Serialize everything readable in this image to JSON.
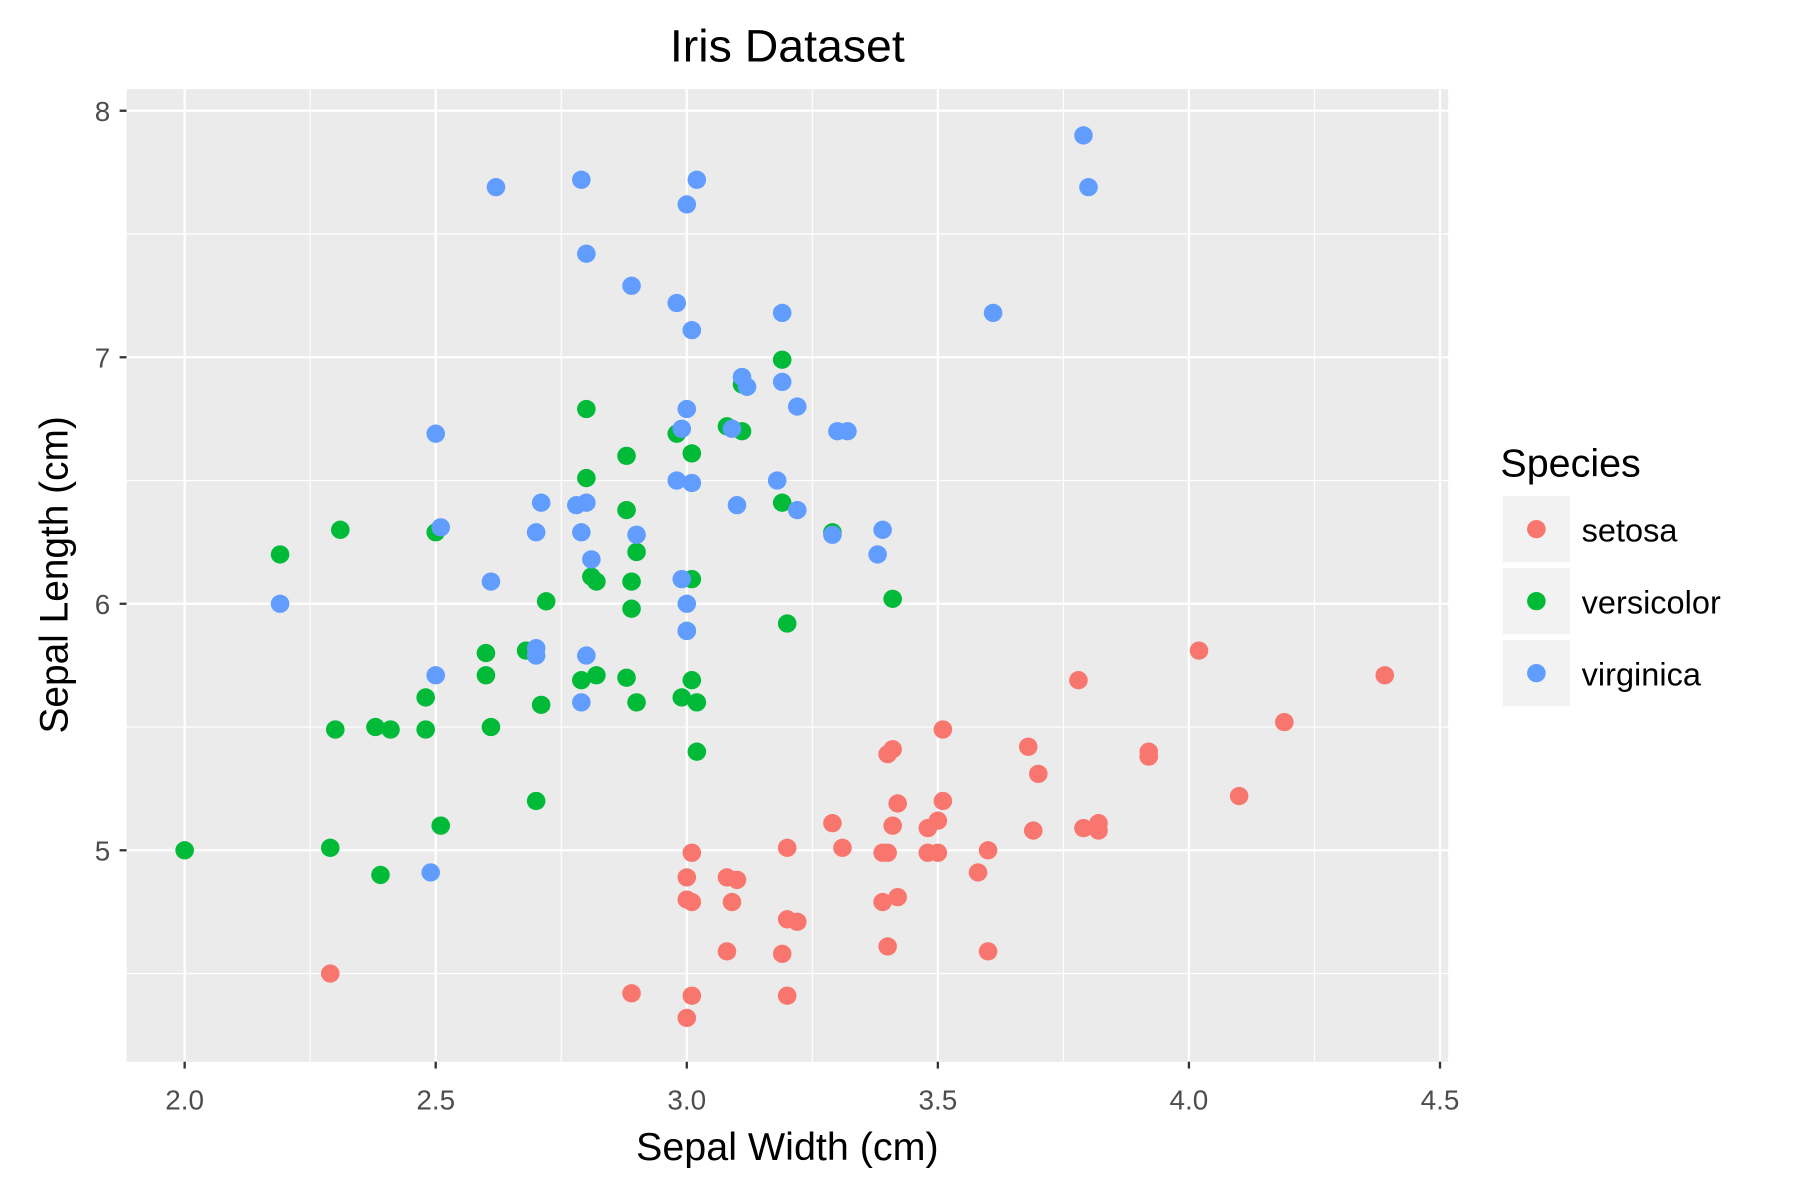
{
  "chart_data": {
    "type": "scatter",
    "title": "Iris Dataset",
    "xlabel": "Sepal Width (cm)",
    "ylabel": "Sepal Length (cm)",
    "xlim": [
      1.88,
      4.51
    ],
    "ylim": [
      4.14,
      8.09
    ],
    "xticks": [
      "2.0",
      "2.5",
      "3.0",
      "3.5",
      "4.0",
      "4.5"
    ],
    "xtick_values": [
      2.0,
      2.5,
      3.0,
      3.5,
      4.0,
      4.5
    ],
    "yticks": [
      "5",
      "6",
      "7",
      "8"
    ],
    "ytick_values": [
      5,
      6,
      7,
      8
    ],
    "grid": true,
    "legend": {
      "title": "Species",
      "placement": "right"
    },
    "series": [
      {
        "name": "setosa",
        "color": "#F8766D",
        "points": [
          [
            2.29,
            4.5
          ],
          [
            4.39,
            5.71
          ],
          [
            4.02,
            5.81
          ],
          [
            3.78,
            5.69
          ],
          [
            4.19,
            5.52
          ],
          [
            3.51,
            5.49
          ],
          [
            3.68,
            5.42
          ],
          [
            3.41,
            5.41
          ],
          [
            3.4,
            5.39
          ],
          [
            3.92,
            5.4
          ],
          [
            3.92,
            5.38
          ],
          [
            3.7,
            5.31
          ],
          [
            4.1,
            5.22
          ],
          [
            3.42,
            5.19
          ],
          [
            3.51,
            5.2
          ],
          [
            3.29,
            5.11
          ],
          [
            3.41,
            5.1
          ],
          [
            3.48,
            5.09
          ],
          [
            3.5,
            5.12
          ],
          [
            3.69,
            5.08
          ],
          [
            3.79,
            5.09
          ],
          [
            3.82,
            5.11
          ],
          [
            3.82,
            5.08
          ],
          [
            3.31,
            5.01
          ],
          [
            3.2,
            5.01
          ],
          [
            3.01,
            4.99
          ],
          [
            3.39,
            4.99
          ],
          [
            3.4,
            4.99
          ],
          [
            3.48,
            4.99
          ],
          [
            3.5,
            4.99
          ],
          [
            3.6,
            5.0
          ],
          [
            3.58,
            4.91
          ],
          [
            3.0,
            4.89
          ],
          [
            3.08,
            4.89
          ],
          [
            3.1,
            4.88
          ],
          [
            3.0,
            4.8
          ],
          [
            3.01,
            4.79
          ],
          [
            3.09,
            4.79
          ],
          [
            3.39,
            4.79
          ],
          [
            3.42,
            4.81
          ],
          [
            3.2,
            4.72
          ],
          [
            3.22,
            4.71
          ],
          [
            3.08,
            4.59
          ],
          [
            3.19,
            4.58
          ],
          [
            3.4,
            4.61
          ],
          [
            3.6,
            4.59
          ],
          [
            2.89,
            4.42
          ],
          [
            3.01,
            4.41
          ],
          [
            3.2,
            4.41
          ],
          [
            3.0,
            4.32
          ]
        ]
      },
      {
        "name": "versicolor",
        "color": "#00BA38",
        "points": [
          [
            2.0,
            5.0
          ],
          [
            2.19,
            6.2
          ],
          [
            2.31,
            6.3
          ],
          [
            2.3,
            5.49
          ],
          [
            2.29,
            5.01
          ],
          [
            2.39,
            4.9
          ],
          [
            2.38,
            5.5
          ],
          [
            2.41,
            5.49
          ],
          [
            2.48,
            5.62
          ],
          [
            2.48,
            5.49
          ],
          [
            2.5,
            6.29
          ],
          [
            2.51,
            5.1
          ],
          [
            2.6,
            5.8
          ],
          [
            2.6,
            5.71
          ],
          [
            2.61,
            5.5
          ],
          [
            2.68,
            5.81
          ],
          [
            2.72,
            6.01
          ],
          [
            2.71,
            5.59
          ],
          [
            2.7,
            5.2
          ],
          [
            2.8,
            6.79
          ],
          [
            2.8,
            6.51
          ],
          [
            2.81,
            6.11
          ],
          [
            2.82,
            6.09
          ],
          [
            2.79,
            5.69
          ],
          [
            2.82,
            5.71
          ],
          [
            2.88,
            6.6
          ],
          [
            2.88,
            6.38
          ],
          [
            2.89,
            6.09
          ],
          [
            2.9,
            6.21
          ],
          [
            2.89,
            5.98
          ],
          [
            2.88,
            5.7
          ],
          [
            2.9,
            5.6
          ],
          [
            2.98,
            6.69
          ],
          [
            3.01,
            6.61
          ],
          [
            3.01,
            6.1
          ],
          [
            3.0,
            5.89
          ],
          [
            3.01,
            5.69
          ],
          [
            2.99,
            5.62
          ],
          [
            3.02,
            5.6
          ],
          [
            3.02,
            5.4
          ],
          [
            3.08,
            6.72
          ],
          [
            3.11,
            6.7
          ],
          [
            3.11,
            6.89
          ],
          [
            3.19,
            6.99
          ],
          [
            3.19,
            6.41
          ],
          [
            3.2,
            5.92
          ],
          [
            3.29,
            6.29
          ],
          [
            3.41,
            6.02
          ]
        ]
      },
      {
        "name": "virginica",
        "color": "#619CFF",
        "points": [
          [
            2.19,
            6.0
          ],
          [
            2.49,
            4.91
          ],
          [
            2.5,
            6.69
          ],
          [
            2.51,
            6.31
          ],
          [
            2.5,
            5.71
          ],
          [
            2.62,
            7.69
          ],
          [
            2.61,
            6.09
          ],
          [
            2.7,
            6.29
          ],
          [
            2.71,
            6.41
          ],
          [
            2.7,
            5.82
          ],
          [
            2.7,
            5.79
          ],
          [
            2.79,
            7.72
          ],
          [
            2.8,
            7.42
          ],
          [
            2.78,
            6.4
          ],
          [
            2.8,
            6.41
          ],
          [
            2.79,
            6.29
          ],
          [
            2.81,
            6.18
          ],
          [
            2.8,
            5.79
          ],
          [
            2.79,
            5.6
          ],
          [
            2.89,
            7.29
          ],
          [
            2.9,
            6.28
          ],
          [
            3.0,
            7.62
          ],
          [
            3.02,
            7.72
          ],
          [
            2.98,
            7.22
          ],
          [
            3.01,
            7.11
          ],
          [
            3.0,
            6.79
          ],
          [
            2.99,
            6.71
          ],
          [
            2.98,
            6.5
          ],
          [
            3.01,
            6.49
          ],
          [
            2.99,
            6.1
          ],
          [
            3.0,
            6.0
          ],
          [
            3.0,
            5.89
          ],
          [
            3.09,
            6.71
          ],
          [
            3.11,
            6.92
          ],
          [
            3.12,
            6.88
          ],
          [
            3.1,
            6.4
          ],
          [
            3.19,
            7.18
          ],
          [
            3.19,
            6.9
          ],
          [
            3.22,
            6.8
          ],
          [
            3.18,
            6.5
          ],
          [
            3.22,
            6.38
          ],
          [
            3.3,
            6.7
          ],
          [
            3.32,
            6.7
          ],
          [
            3.29,
            6.28
          ],
          [
            3.39,
            6.3
          ],
          [
            3.38,
            6.2
          ],
          [
            3.61,
            7.18
          ],
          [
            3.79,
            7.9
          ],
          [
            3.8,
            7.69
          ]
        ]
      }
    ]
  }
}
